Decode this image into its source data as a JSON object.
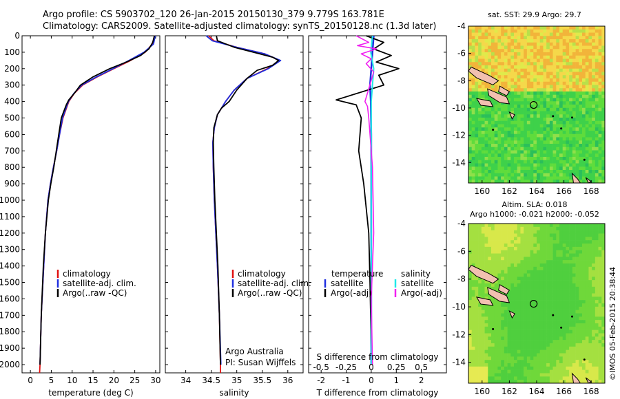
{
  "header": {
    "line1": "Argo profile: CS 5903702_120 26-Jan-2015 20150130_379 9.779S 163.781E",
    "line2": "Climatology: CARS2009. Satellite-adjusted climatology: synTS_20150128.nc (1.3d later)"
  },
  "colors": {
    "climatology": "#e01010",
    "satellite": "#1f2fe0",
    "argo": "#000000",
    "sat_salinity": "#20e8e8",
    "argo_salinity": "#f020f0"
  },
  "panels": {
    "temperature": {
      "xlabel": "temperature (deg C)",
      "legend": [
        "climatology",
        "satellite-adj. clim.",
        "Argo(..raw -QC)"
      ]
    },
    "salinity": {
      "xlabel": "salinity",
      "legend": [
        "climatology",
        "satellite-adj. clim.",
        "Argo(..raw -QC)"
      ],
      "note1": "Argo Australia",
      "note2": "PI: Susan Wijffels"
    },
    "difference": {
      "xlabel": "T difference from climatology",
      "top_label": "S difference from climatology",
      "legend_t_title": "temperature",
      "legend_s_title": "salinity",
      "legend_t": [
        "satellite",
        "Argo(-adj)"
      ],
      "legend_s": [
        "satellite",
        "Argo(-adj)"
      ]
    },
    "map_sst": {
      "title": "sat. SST: 29.9  Argo: 29.7"
    },
    "map_sla": {
      "title1": "Altim. SLA: 0.018",
      "title2": "Argo h1000: -0.021 h2000: -0.052"
    },
    "stamp": "©IMOS 05-Feb-2015 20:38:44"
  },
  "chart_data": [
    {
      "type": "line",
      "title": "",
      "xlabel": "temperature (deg C)",
      "ylabel": "",
      "xlim": [
        -2,
        31
      ],
      "ylim": [
        2050,
        0
      ],
      "x_ticks": [
        0,
        5,
        10,
        15,
        20,
        25,
        30
      ],
      "y_ticks": [
        0,
        100,
        200,
        300,
        400,
        500,
        600,
        700,
        800,
        900,
        1000,
        1100,
        1200,
        1300,
        1400,
        1500,
        1600,
        1700,
        1800,
        1900,
        2000
      ],
      "series": [
        {
          "name": "climatology",
          "x": [
            29.8,
            29.2,
            27.5,
            24,
            20,
            16,
            12.5,
            10.5,
            9.2,
            7.8,
            7,
            6.3,
            5.5,
            4.8,
            4.2,
            3.6,
            3.2,
            2.6,
            2.3,
            2.2
          ],
          "y": [
            0,
            50,
            100,
            150,
            200,
            250,
            300,
            350,
            400,
            500,
            600,
            700,
            800,
            900,
            1000,
            1200,
            1400,
            1700,
            2000,
            2050
          ]
        },
        {
          "name": "satellite-adj. clim.",
          "x": [
            29.9,
            29.5,
            27.2,
            23.6,
            19.8,
            15.8,
            12.3,
            10.4,
            9.1,
            7.7,
            7,
            6.3,
            5.5,
            4.8,
            4.2,
            3.6,
            3.2,
            2.6,
            2.3
          ],
          "y": [
            0,
            50,
            100,
            150,
            200,
            250,
            300,
            350,
            400,
            500,
            600,
            700,
            800,
            900,
            1000,
            1200,
            1400,
            1700,
            2000
          ]
        },
        {
          "name": "Argo(..raw -QC)",
          "x": [
            29.7,
            29.3,
            28.4,
            26.4,
            23,
            19,
            15,
            12,
            10.5,
            9.2,
            8.6,
            7.4,
            6.8,
            6.2,
            5.6,
            4.9,
            4.3,
            3.6,
            3.1,
            2.6,
            2.3
          ],
          "y": [
            0,
            40,
            80,
            120,
            160,
            200,
            250,
            300,
            350,
            390,
            420,
            500,
            600,
            700,
            800,
            900,
            1000,
            1200,
            1400,
            1700,
            2000
          ]
        }
      ]
    },
    {
      "type": "line",
      "title": "",
      "xlabel": "salinity",
      "ylabel": "",
      "xlim": [
        33.6,
        36.3
      ],
      "ylim": [
        2050,
        0
      ],
      "x_ticks": [
        34,
        34.5,
        35,
        35.5,
        36
      ],
      "series": [
        {
          "name": "climatology",
          "x": [
            34.45,
            34.55,
            35,
            35.55,
            35.85,
            35.6,
            35.2,
            34.95,
            34.78,
            34.62,
            34.56,
            34.53,
            34.54,
            34.56,
            34.59,
            34.62,
            34.66,
            34.68,
            34.68
          ],
          "y": [
            0,
            30,
            70,
            110,
            150,
            200,
            260,
            330,
            400,
            480,
            560,
            650,
            800,
            1000,
            1200,
            1400,
            1700,
            2000,
            2050
          ]
        },
        {
          "name": "satellite-adj. clim.",
          "x": [
            34.4,
            34.52,
            35,
            35.55,
            35.86,
            35.62,
            35.2,
            34.95,
            34.78,
            34.62,
            34.56,
            34.53,
            34.54,
            34.56,
            34.59,
            34.62,
            34.66,
            34.69
          ],
          "y": [
            0,
            30,
            70,
            110,
            150,
            200,
            260,
            330,
            400,
            480,
            560,
            650,
            800,
            1000,
            1200,
            1400,
            1700,
            2000
          ]
        },
        {
          "name": "Argo(..raw -QC)",
          "x": [
            34.6,
            34.62,
            34.95,
            35.45,
            35.7,
            35.82,
            35.7,
            35.4,
            35.2,
            35,
            34.85,
            34.7,
            34.62,
            34.55,
            34.54,
            34.55,
            34.57,
            34.6,
            34.63,
            34.66,
            34.68
          ],
          "y": [
            0,
            30,
            70,
            110,
            130,
            150,
            180,
            210,
            260,
            330,
            400,
            440,
            480,
            560,
            650,
            800,
            1000,
            1200,
            1400,
            1700,
            2000
          ]
        }
      ]
    },
    {
      "type": "line",
      "title": "",
      "xlabel": "T difference from climatology",
      "top_label": "S difference from climatology",
      "xlim": [
        -2.5,
        3
      ],
      "ylim": [
        2050,
        0
      ],
      "x_ticks": [
        -2,
        -1,
        0,
        1,
        2
      ],
      "top_ticks": [
        "-0.5",
        "-0.25",
        "0",
        "0.25",
        "0.5"
      ],
      "series": [
        {
          "name": "temperature satellite",
          "x": [
            0.1,
            0.05,
            0,
            -0.05,
            -0.02,
            0,
            0,
            0,
            0,
            0
          ],
          "y": [
            0,
            100,
            200,
            300,
            400,
            600,
            1000,
            1400,
            1800,
            2000
          ]
        },
        {
          "name": "temperature Argo(-adj)",
          "x": [
            -0.2,
            0.5,
            0.1,
            0.8,
            0.2,
            1.1,
            0.3,
            0.5,
            -1.4,
            -0.6,
            -0.4,
            -0.5,
            -0.3,
            -0.1,
            -0.05,
            0
          ],
          "y": [
            0,
            40,
            80,
            120,
            160,
            200,
            240,
            300,
            390,
            420,
            500,
            700,
            900,
            1200,
            1500,
            1900
          ]
        },
        {
          "name": "salinity satellite",
          "x": [
            0.05,
            -0.02,
            0.1,
            0.05,
            0,
            0,
            0,
            0
          ],
          "y": [
            0,
            100,
            200,
            300,
            400,
            600,
            1000,
            2000
          ]
        },
        {
          "name": "salinity Argo(-adj)",
          "x": [
            -0.6,
            -0.1,
            -0.55,
            0.2,
            -0.4,
            0,
            -0.2,
            0.1,
            -0.25,
            -0.15,
            -0.1,
            0.05,
            0.1,
            0,
            0.05
          ],
          "y": [
            0,
            40,
            60,
            80,
            110,
            140,
            170,
            220,
            400,
            430,
            500,
            800,
            1200,
            1600,
            2000
          ]
        }
      ]
    },
    {
      "type": "heatmap",
      "title": "sat. SST: 29.9  Argo: 29.7",
      "xlim": [
        159,
        169
      ],
      "ylim": [
        -15.5,
        -4
      ],
      "x_ticks": [
        160,
        162,
        164,
        166,
        168
      ],
      "y_ticks": [
        -4,
        -6,
        -8,
        -10,
        -12,
        -14
      ],
      "marker": {
        "lon": 163.781,
        "lat": -9.779
      }
    },
    {
      "type": "heatmap",
      "title": "Altim. SLA: 0.018",
      "subtitle": "Argo h1000: -0.021 h2000: -0.052",
      "xlim": [
        159,
        169
      ],
      "ylim": [
        -15.5,
        -4
      ],
      "x_ticks": [
        160,
        162,
        164,
        166,
        168
      ],
      "y_ticks": [
        -4,
        -6,
        -8,
        -10,
        -12,
        -14
      ],
      "marker": {
        "lon": 163.781,
        "lat": -9.779
      }
    }
  ]
}
